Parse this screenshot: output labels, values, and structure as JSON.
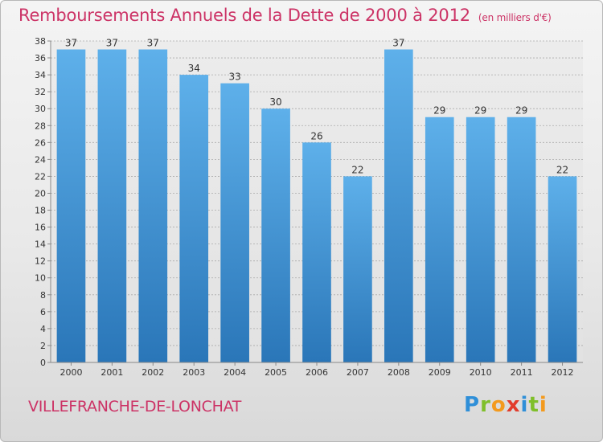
{
  "header": {
    "title": "Remboursements Annuels de la Dette de 2000 à 2012",
    "unit": "(en milliers d'€)"
  },
  "footer": {
    "commune": "VILLEFRANCHE-DE-LONCHAT",
    "brand_letters": [
      "P",
      "r",
      "o",
      "x",
      "i",
      "t",
      "i"
    ]
  },
  "colors": {
    "title": "#cc3366",
    "bar_top": "#5eb0ea",
    "bar_bottom": "#2a76b8",
    "grid": "#aaaaaa"
  },
  "chart_data": {
    "type": "bar",
    "title": "Remboursements Annuels de la Dette de 2000 à 2012",
    "subtitle": "(en milliers d'€)",
    "xlabel": "",
    "ylabel": "",
    "categories": [
      "2000",
      "2001",
      "2002",
      "2003",
      "2004",
      "2005",
      "2006",
      "2007",
      "2008",
      "2009",
      "2010",
      "2011",
      "2012"
    ],
    "values": [
      37,
      37,
      37,
      34,
      33,
      30,
      26,
      22,
      37,
      29,
      29,
      29,
      22
    ],
    "ylim": [
      0,
      38
    ],
    "yticks": [
      0,
      2,
      4,
      6,
      8,
      10,
      12,
      14,
      16,
      18,
      20,
      22,
      24,
      26,
      28,
      30,
      32,
      34,
      36,
      38
    ],
    "grid": true,
    "data_labels": true
  }
}
